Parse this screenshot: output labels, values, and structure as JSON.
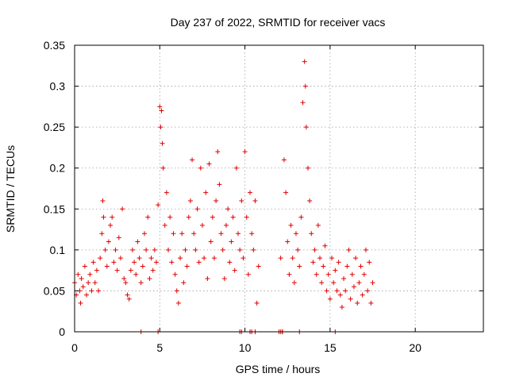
{
  "chart_data": {
    "type": "scatter",
    "title": "Day 237 of 2022, SRMTID for receiver vacs",
    "xlabel": "GPS time / hours",
    "ylabel": "SRMTID / TECUs",
    "xlim": [
      0,
      24
    ],
    "ylim": [
      0,
      0.35
    ],
    "xticks": [
      "0",
      "5",
      "10",
      "15",
      "20"
    ],
    "yticks": [
      "0",
      "0.05",
      "0.1",
      "0.15",
      "0.2",
      "0.25",
      "0.3",
      "0.35"
    ],
    "grid": true,
    "marker": "plus",
    "color": "#e00000",
    "series": [
      {
        "name": "SRMTID",
        "points": [
          [
            0.0,
            0.06
          ],
          [
            0.1,
            0.045
          ],
          [
            0.2,
            0.07
          ],
          [
            0.3,
            0.05
          ],
          [
            0.35,
            0.035
          ],
          [
            0.4,
            0.065
          ],
          [
            0.5,
            0.055
          ],
          [
            0.6,
            0.08
          ],
          [
            0.7,
            0.045
          ],
          [
            0.8,
            0.06
          ],
          [
            0.9,
            0.07
          ],
          [
            1.0,
            0.05
          ],
          [
            1.1,
            0.085
          ],
          [
            1.2,
            0.06
          ],
          [
            1.3,
            0.075
          ],
          [
            1.4,
            0.05
          ],
          [
            1.5,
            0.09
          ],
          [
            1.6,
            0.12
          ],
          [
            1.65,
            0.16
          ],
          [
            1.7,
            0.14
          ],
          [
            1.8,
            0.1
          ],
          [
            1.9,
            0.08
          ],
          [
            2.0,
            0.11
          ],
          [
            2.1,
            0.13
          ],
          [
            2.2,
            0.14
          ],
          [
            2.3,
            0.085
          ],
          [
            2.4,
            0.1
          ],
          [
            2.5,
            0.075
          ],
          [
            2.6,
            0.115
          ],
          [
            2.7,
            0.09
          ],
          [
            2.8,
            0.15
          ],
          [
            2.9,
            0.065
          ],
          [
            3.0,
            0.06
          ],
          [
            3.1,
            0.045
          ],
          [
            3.2,
            0.04
          ],
          [
            3.3,
            0.075
          ],
          [
            3.4,
            0.1
          ],
          [
            3.5,
            0.085
          ],
          [
            3.6,
            0.07
          ],
          [
            3.7,
            0.11
          ],
          [
            3.8,
            0.09
          ],
          [
            3.9,
            0.06
          ],
          [
            4.0,
            0.08
          ],
          [
            4.1,
            0.12
          ],
          [
            4.2,
            0.1
          ],
          [
            4.3,
            0.14
          ],
          [
            4.4,
            0.065
          ],
          [
            4.5,
            0.09
          ],
          [
            4.6,
            0.075
          ],
          [
            4.7,
            0.1
          ],
          [
            4.8,
            0.085
          ],
          [
            4.9,
            0.155
          ],
          [
            5.0,
            0.275
          ],
          [
            5.05,
            0.25
          ],
          [
            5.1,
            0.27
          ],
          [
            5.15,
            0.23
          ],
          [
            5.2,
            0.2
          ],
          [
            5.3,
            0.13
          ],
          [
            5.4,
            0.17
          ],
          [
            5.5,
            0.1
          ],
          [
            5.6,
            0.14
          ],
          [
            5.7,
            0.085
          ],
          [
            5.8,
            0.12
          ],
          [
            5.9,
            0.07
          ],
          [
            6.0,
            0.05
          ],
          [
            6.1,
            0.035
          ],
          [
            6.2,
            0.09
          ],
          [
            6.3,
            0.12
          ],
          [
            6.4,
            0.06
          ],
          [
            6.5,
            0.1
          ],
          [
            6.6,
            0.08
          ],
          [
            6.7,
            0.14
          ],
          [
            6.8,
            0.16
          ],
          [
            6.9,
            0.21
          ],
          [
            7.0,
            0.12
          ],
          [
            7.1,
            0.1
          ],
          [
            7.2,
            0.15
          ],
          [
            7.3,
            0.085
          ],
          [
            7.4,
            0.2
          ],
          [
            7.5,
            0.13
          ],
          [
            7.6,
            0.09
          ],
          [
            7.7,
            0.17
          ],
          [
            7.8,
            0.065
          ],
          [
            7.9,
            0.205
          ],
          [
            8.0,
            0.11
          ],
          [
            8.1,
            0.14
          ],
          [
            8.2,
            0.09
          ],
          [
            8.3,
            0.16
          ],
          [
            8.4,
            0.22
          ],
          [
            8.5,
            0.18
          ],
          [
            8.6,
            0.12
          ],
          [
            8.7,
            0.1
          ],
          [
            8.8,
            0.065
          ],
          [
            8.9,
            0.13
          ],
          [
            9.0,
            0.15
          ],
          [
            9.1,
            0.085
          ],
          [
            9.2,
            0.11
          ],
          [
            9.3,
            0.14
          ],
          [
            9.4,
            0.075
          ],
          [
            9.5,
            0.2
          ],
          [
            9.6,
            0.12
          ],
          [
            9.7,
            0.1
          ],
          [
            9.8,
            0.16
          ],
          [
            9.9,
            0.09
          ],
          [
            10.0,
            0.22
          ],
          [
            10.1,
            0.14
          ],
          [
            10.2,
            0.07
          ],
          [
            10.3,
            0.17
          ],
          [
            10.4,
            0.12
          ],
          [
            10.5,
            0.1
          ],
          [
            10.6,
            0.16
          ],
          [
            10.7,
            0.035
          ],
          [
            10.8,
            0.08
          ],
          [
            12.1,
            0.09
          ],
          [
            12.2,
            0.0
          ],
          [
            12.3,
            0.21
          ],
          [
            12.4,
            0.17
          ],
          [
            12.5,
            0.11
          ],
          [
            12.6,
            0.07
          ],
          [
            12.7,
            0.13
          ],
          [
            12.8,
            0.09
          ],
          [
            12.9,
            0.06
          ],
          [
            13.0,
            0.12
          ],
          [
            13.1,
            0.1
          ],
          [
            13.2,
            0.08
          ],
          [
            13.3,
            0.14
          ],
          [
            13.4,
            0.28
          ],
          [
            13.5,
            0.33
          ],
          [
            13.55,
            0.3
          ],
          [
            13.6,
            0.25
          ],
          [
            13.7,
            0.2
          ],
          [
            13.8,
            0.16
          ],
          [
            13.9,
            0.12
          ],
          [
            14.0,
            0.085
          ],
          [
            14.1,
            0.1
          ],
          [
            14.2,
            0.07
          ],
          [
            14.3,
            0.13
          ],
          [
            14.4,
            0.09
          ],
          [
            14.5,
            0.06
          ],
          [
            14.6,
            0.08
          ],
          [
            14.7,
            0.105
          ],
          [
            14.8,
            0.05
          ],
          [
            14.9,
            0.07
          ],
          [
            15.0,
            0.04
          ],
          [
            15.1,
            0.09
          ],
          [
            15.2,
            0.06
          ],
          [
            15.3,
            0.075
          ],
          [
            15.4,
            0.05
          ],
          [
            15.5,
            0.085
          ],
          [
            15.6,
            0.045
          ],
          [
            15.7,
            0.03
          ],
          [
            15.8,
            0.065
          ],
          [
            15.9,
            0.05
          ],
          [
            16.0,
            0.08
          ],
          [
            16.1,
            0.1
          ],
          [
            16.2,
            0.04
          ],
          [
            16.3,
            0.07
          ],
          [
            16.4,
            0.055
          ],
          [
            16.5,
            0.09
          ],
          [
            16.6,
            0.035
          ],
          [
            16.7,
            0.06
          ],
          [
            16.8,
            0.08
          ],
          [
            16.9,
            0.045
          ],
          [
            17.0,
            0.07
          ],
          [
            17.1,
            0.1
          ],
          [
            17.2,
            0.05
          ],
          [
            17.3,
            0.085
          ],
          [
            17.4,
            0.035
          ],
          [
            17.5,
            0.06
          ],
          [
            3.9,
            0.0
          ],
          [
            4.9,
            0.0
          ],
          [
            9.7,
            0.0
          ],
          [
            9.8,
            0.0
          ],
          [
            10.3,
            0.0
          ],
          [
            10.4,
            0.0
          ],
          [
            10.6,
            0.0
          ],
          [
            12.0,
            0.0
          ],
          [
            12.1,
            0.0
          ],
          [
            12.2,
            0.0
          ],
          [
            13.2,
            0.0
          ],
          [
            15.3,
            0.0
          ]
        ]
      }
    ]
  }
}
